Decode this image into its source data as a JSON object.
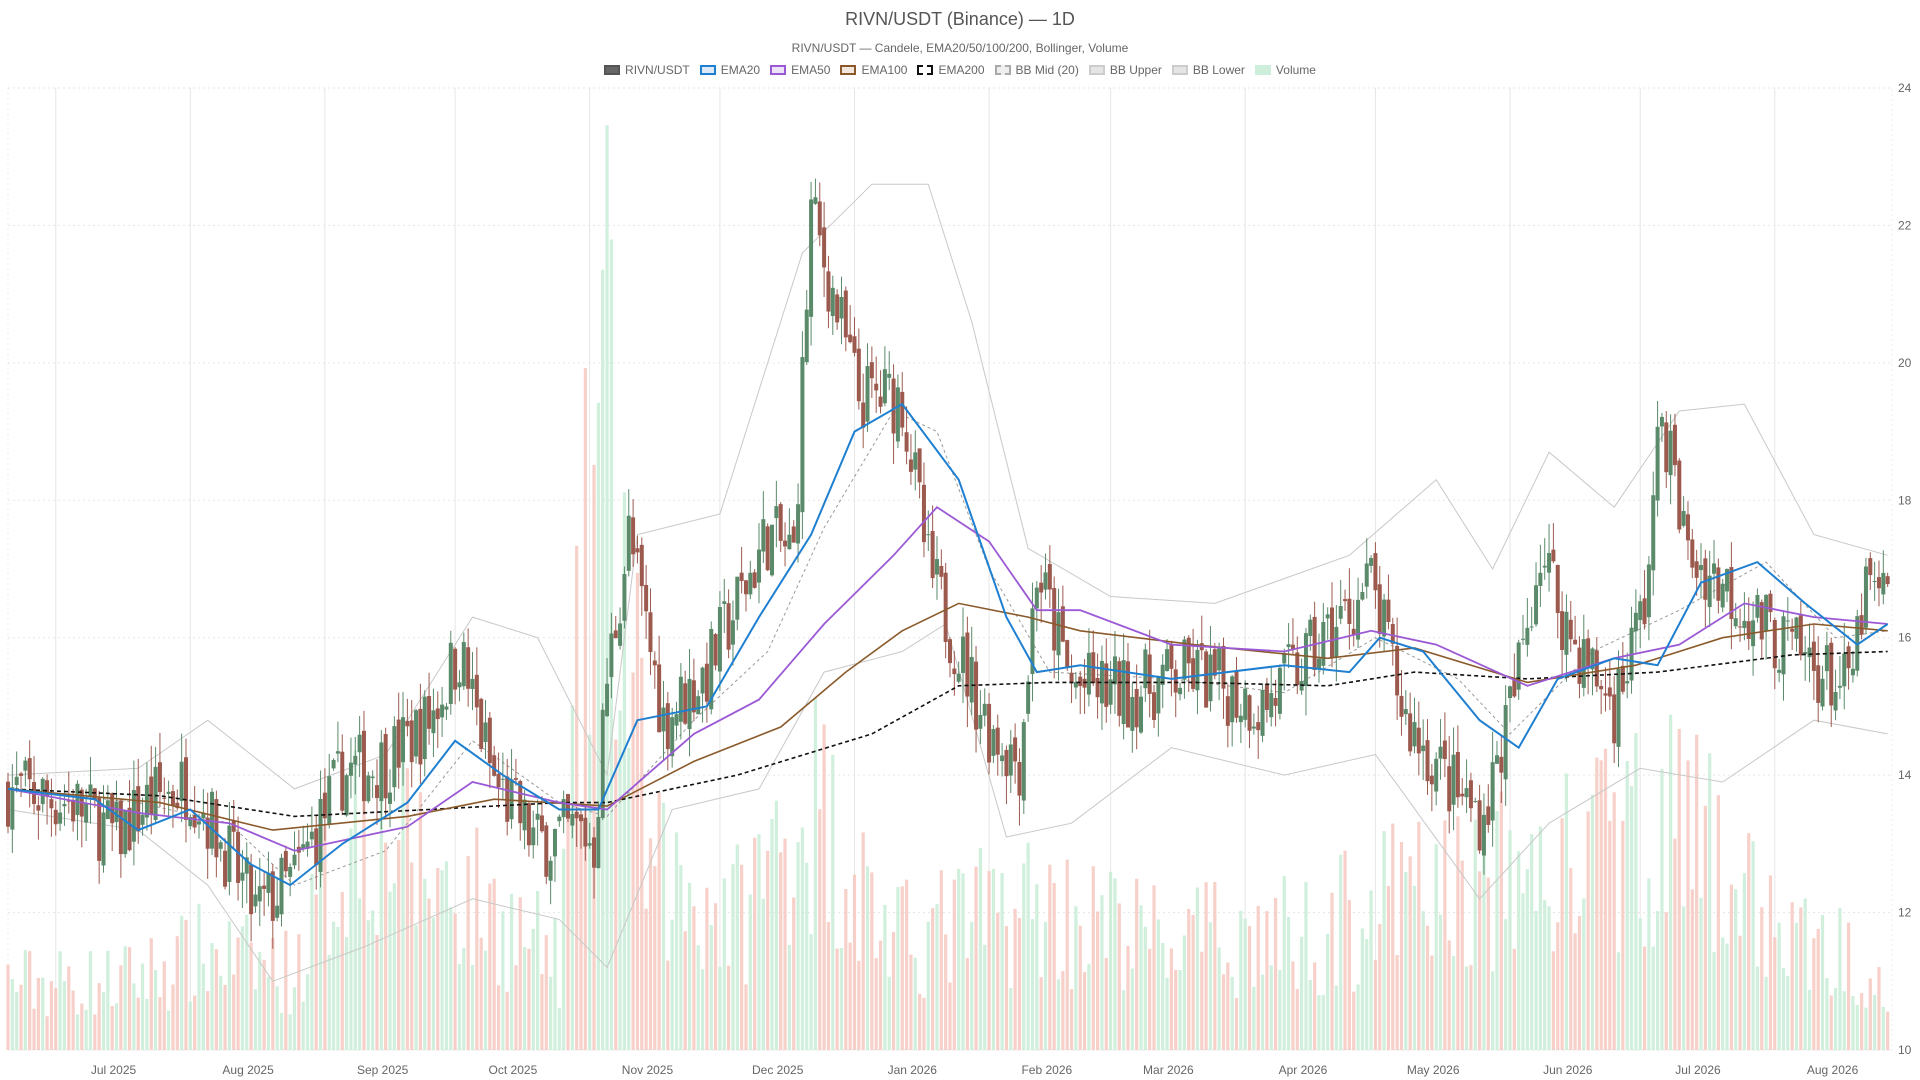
{
  "chart_data": {
    "type": "candlestick",
    "title": "RIVN/USDT (Binance) — 1D",
    "subtitle": "RIVN/USDT — Candele, EMA20/50/100/200, Bollinger, Volume",
    "legend": [
      {
        "name": "RIVN/USDT",
        "color": "#666666",
        "border": "#555555",
        "dashed": false
      },
      {
        "name": "EMA20",
        "color": "#dde9f6",
        "border": "#1f7fd0",
        "dashed": false
      },
      {
        "name": "EMA50",
        "color": "#ece4f6",
        "border": "#9b59d6",
        "dashed": false
      },
      {
        "name": "EMA100",
        "color": "#f3e6dc",
        "border": "#8b5a2b",
        "dashed": false
      },
      {
        "name": "EMA200",
        "color": "#ffffff",
        "border": "#111111",
        "dashed": true
      },
      {
        "name": "BB Mid (20)",
        "color": "#eeeeee",
        "border": "#aaaaaa",
        "dashed": true
      },
      {
        "name": "BB Upper",
        "color": "#e5e5e5",
        "border": "#cccccc",
        "dashed": false
      },
      {
        "name": "BB Lower",
        "color": "#e5e5e5",
        "border": "#cccccc",
        "dashed": false
      },
      {
        "name": "Volume",
        "color": "#cdeedb",
        "border": "#cdeedb",
        "dashed": false
      }
    ],
    "x_ticks": [
      "Jul 2025",
      "Aug 2025",
      "Sep 2025",
      "Oct 2025",
      "Nov 2025",
      "Dec 2025",
      "Jan 2026",
      "Feb 2026",
      "Mar 2026",
      "Apr 2026",
      "May 2026",
      "Jun 2026",
      "Jul 2026",
      "Aug 2026"
    ],
    "y_ticks": [
      10,
      12,
      14,
      16,
      18,
      20,
      22,
      24
    ],
    "ylim": [
      10,
      24
    ],
    "colors": {
      "up": "#5a8a6a",
      "down": "#9c5a4e",
      "vol_up": "#c8ecd6",
      "vol_down": "#f6c8c0",
      "ema20": "#1f7fd0",
      "ema50": "#9b59d6",
      "ema100": "#8b5a2b",
      "ema200": "#111111",
      "bb_mid": "#999999",
      "bb_band": "#c8c8c8",
      "grid": "#e6e6e6"
    },
    "price_path": [
      {
        "x": "2025-06-20",
        "y": 13.8
      },
      {
        "x": "2025-07-05",
        "y": 13.6
      },
      {
        "x": "2025-07-15",
        "y": 13.1
      },
      {
        "x": "2025-07-22",
        "y": 13.6
      },
      {
        "x": "2025-08-01",
        "y": 13.9
      },
      {
        "x": "2025-08-10",
        "y": 12.8
      },
      {
        "x": "2025-08-16",
        "y": 12.0
      },
      {
        "x": "2025-08-25",
        "y": 12.5
      },
      {
        "x": "2025-09-05",
        "y": 14.0
      },
      {
        "x": "2025-09-15",
        "y": 14.2
      },
      {
        "x": "2025-09-25",
        "y": 14.8
      },
      {
        "x": "2025-10-02",
        "y": 15.8
      },
      {
        "x": "2025-10-10",
        "y": 13.9
      },
      {
        "x": "2025-10-20",
        "y": 13.0
      },
      {
        "x": "2025-10-30",
        "y": 13.2
      },
      {
        "x": "2025-11-02",
        "y": 13.0
      },
      {
        "x": "2025-11-05",
        "y": 15.4
      },
      {
        "x": "2025-11-10",
        "y": 17.5
      },
      {
        "x": "2025-11-18",
        "y": 14.8
      },
      {
        "x": "2025-11-28",
        "y": 15.5
      },
      {
        "x": "2025-12-05",
        "y": 16.5
      },
      {
        "x": "2025-12-12",
        "y": 17.5
      },
      {
        "x": "2025-12-18",
        "y": 17.2
      },
      {
        "x": "2025-12-22",
        "y": 22.2
      },
      {
        "x": "2025-12-27",
        "y": 21.0
      },
      {
        "x": "2026-01-02",
        "y": 19.5
      },
      {
        "x": "2026-01-12",
        "y": 19.5
      },
      {
        "x": "2026-01-18",
        "y": 17.0
      },
      {
        "x": "2026-01-25",
        "y": 15.8
      },
      {
        "x": "2026-02-01",
        "y": 14.7
      },
      {
        "x": "2026-02-08",
        "y": 14.2
      },
      {
        "x": "2026-02-12",
        "y": 17.0
      },
      {
        "x": "2026-02-20",
        "y": 15.3
      },
      {
        "x": "2026-03-05",
        "y": 15.2
      },
      {
        "x": "2026-03-20",
        "y": 15.5
      },
      {
        "x": "2026-04-05",
        "y": 15.0
      },
      {
        "x": "2026-04-20",
        "y": 16.0
      },
      {
        "x": "2026-04-30",
        "y": 16.8
      },
      {
        "x": "2026-05-08",
        "y": 14.8
      },
      {
        "x": "2026-05-20",
        "y": 13.7
      },
      {
        "x": "2026-05-26",
        "y": 13.4
      },
      {
        "x": "2026-06-02",
        "y": 15.2
      },
      {
        "x": "2026-06-08",
        "y": 17.3
      },
      {
        "x": "2026-06-15",
        "y": 16.0
      },
      {
        "x": "2026-06-25",
        "y": 15.0
      },
      {
        "x": "2026-07-02",
        "y": 16.5
      },
      {
        "x": "2026-07-06",
        "y": 19.3
      },
      {
        "x": "2026-07-12",
        "y": 17.2
      },
      {
        "x": "2026-07-20",
        "y": 16.8
      },
      {
        "x": "2026-08-01",
        "y": 16.0
      },
      {
        "x": "2026-08-10",
        "y": 15.6
      },
      {
        "x": "2026-08-18",
        "y": 15.2
      },
      {
        "x": "2026-08-22",
        "y": 16.7
      },
      {
        "x": "2026-08-27",
        "y": 16.5
      }
    ],
    "bb_upper": [
      {
        "x": "2025-06-20",
        "y": 14.0
      },
      {
        "x": "2025-07-20",
        "y": 14.1
      },
      {
        "x": "2025-08-05",
        "y": 14.8
      },
      {
        "x": "2025-08-25",
        "y": 13.8
      },
      {
        "x": "2025-09-15",
        "y": 14.3
      },
      {
        "x": "2025-10-05",
        "y": 16.3
      },
      {
        "x": "2025-10-20",
        "y": 16.0
      },
      {
        "x": "2025-11-05",
        "y": 14.0
      },
      {
        "x": "2025-11-12",
        "y": 17.5
      },
      {
        "x": "2025-12-01",
        "y": 17.8
      },
      {
        "x": "2025-12-20",
        "y": 21.6
      },
      {
        "x": "2026-01-05",
        "y": 22.6
      },
      {
        "x": "2026-01-18",
        "y": 22.6
      },
      {
        "x": "2026-01-28",
        "y": 20.6
      },
      {
        "x": "2026-02-10",
        "y": 17.3
      },
      {
        "x": "2026-03-01",
        "y": 16.6
      },
      {
        "x": "2026-03-25",
        "y": 16.5
      },
      {
        "x": "2026-04-25",
        "y": 17.2
      },
      {
        "x": "2026-05-15",
        "y": 18.3
      },
      {
        "x": "2026-05-28",
        "y": 17.0
      },
      {
        "x": "2026-06-10",
        "y": 18.7
      },
      {
        "x": "2026-06-25",
        "y": 17.9
      },
      {
        "x": "2026-07-10",
        "y": 19.3
      },
      {
        "x": "2026-07-25",
        "y": 19.4
      },
      {
        "x": "2026-08-10",
        "y": 17.5
      },
      {
        "x": "2026-08-27",
        "y": 17.2
      }
    ],
    "bb_lower": [
      {
        "x": "2025-06-20",
        "y": 13.5
      },
      {
        "x": "2025-07-20",
        "y": 13.2
      },
      {
        "x": "2025-08-05",
        "y": 12.4
      },
      {
        "x": "2025-08-20",
        "y": 11.0
      },
      {
        "x": "2025-09-10",
        "y": 11.5
      },
      {
        "x": "2025-10-05",
        "y": 12.2
      },
      {
        "x": "2025-10-25",
        "y": 11.9
      },
      {
        "x": "2025-11-05",
        "y": 11.2
      },
      {
        "x": "2025-11-20",
        "y": 13.5
      },
      {
        "x": "2025-12-10",
        "y": 13.8
      },
      {
        "x": "2025-12-25",
        "y": 15.5
      },
      {
        "x": "2026-01-12",
        "y": 15.8
      },
      {
        "x": "2026-01-22",
        "y": 16.2
      },
      {
        "x": "2026-02-05",
        "y": 13.1
      },
      {
        "x": "2026-02-20",
        "y": 13.3
      },
      {
        "x": "2026-03-15",
        "y": 14.4
      },
      {
        "x": "2026-04-10",
        "y": 14.0
      },
      {
        "x": "2026-05-01",
        "y": 14.3
      },
      {
        "x": "2026-05-25",
        "y": 12.2
      },
      {
        "x": "2026-06-10",
        "y": 13.3
      },
      {
        "x": "2026-07-01",
        "y": 14.1
      },
      {
        "x": "2026-07-20",
        "y": 13.9
      },
      {
        "x": "2026-08-10",
        "y": 14.8
      },
      {
        "x": "2026-08-27",
        "y": 14.6
      }
    ],
    "bb_mid": [
      {
        "x": "2025-06-20",
        "y": 13.8
      },
      {
        "x": "2025-07-20",
        "y": 13.6
      },
      {
        "x": "2025-08-10",
        "y": 13.3
      },
      {
        "x": "2025-08-25",
        "y": 12.4
      },
      {
        "x": "2025-09-15",
        "y": 12.9
      },
      {
        "x": "2025-10-05",
        "y": 14.5
      },
      {
        "x": "2025-10-25",
        "y": 13.6
      },
      {
        "x": "2025-11-05",
        "y": 13.4
      },
      {
        "x": "2025-11-25",
        "y": 14.8
      },
      {
        "x": "2025-12-12",
        "y": 15.8
      },
      {
        "x": "2025-12-25",
        "y": 17.6
      },
      {
        "x": "2026-01-10",
        "y": 19.3
      },
      {
        "x": "2026-01-20",
        "y": 19.0
      },
      {
        "x": "2026-02-01",
        "y": 17.0
      },
      {
        "x": "2026-02-15",
        "y": 15.5
      },
      {
        "x": "2026-03-15",
        "y": 15.4
      },
      {
        "x": "2026-04-10",
        "y": 15.2
      },
      {
        "x": "2026-05-01",
        "y": 16.0
      },
      {
        "x": "2026-05-20",
        "y": 15.4
      },
      {
        "x": "2026-06-01",
        "y": 14.6
      },
      {
        "x": "2026-06-20",
        "y": 15.8
      },
      {
        "x": "2026-07-10",
        "y": 16.4
      },
      {
        "x": "2026-07-30",
        "y": 17.1
      },
      {
        "x": "2026-08-15",
        "y": 16.0
      },
      {
        "x": "2026-08-27",
        "y": 16.1
      }
    ],
    "ema20": [
      {
        "x": "2025-06-20",
        "y": 13.8
      },
      {
        "x": "2025-07-10",
        "y": 13.65
      },
      {
        "x": "2025-07-20",
        "y": 13.2
      },
      {
        "x": "2025-08-01",
        "y": 13.5
      },
      {
        "x": "2025-08-15",
        "y": 12.7
      },
      {
        "x": "2025-08-24",
        "y": 12.4
      },
      {
        "x": "2025-09-05",
        "y": 13.0
      },
      {
        "x": "2025-09-20",
        "y": 13.6
      },
      {
        "x": "2025-10-01",
        "y": 14.5
      },
      {
        "x": "2025-10-12",
        "y": 14.0
      },
      {
        "x": "2025-10-25",
        "y": 13.5
      },
      {
        "x": "2025-11-03",
        "y": 13.5
      },
      {
        "x": "2025-11-12",
        "y": 14.8
      },
      {
        "x": "2025-11-28",
        "y": 15.0
      },
      {
        "x": "2025-12-10",
        "y": 16.3
      },
      {
        "x": "2025-12-22",
        "y": 17.5
      },
      {
        "x": "2026-01-01",
        "y": 19.0
      },
      {
        "x": "2026-01-12",
        "y": 19.4
      },
      {
        "x": "2026-01-25",
        "y": 18.3
      },
      {
        "x": "2026-02-05",
        "y": 16.3
      },
      {
        "x": "2026-02-12",
        "y": 15.5
      },
      {
        "x": "2026-02-22",
        "y": 15.6
      },
      {
        "x": "2026-03-15",
        "y": 15.4
      },
      {
        "x": "2026-04-10",
        "y": 15.6
      },
      {
        "x": "2026-04-25",
        "y": 15.5
      },
      {
        "x": "2026-05-02",
        "y": 16.0
      },
      {
        "x": "2026-05-12",
        "y": 15.8
      },
      {
        "x": "2026-05-25",
        "y": 14.8
      },
      {
        "x": "2026-06-03",
        "y": 14.4
      },
      {
        "x": "2026-06-12",
        "y": 15.4
      },
      {
        "x": "2026-06-25",
        "y": 15.7
      },
      {
        "x": "2026-07-05",
        "y": 15.6
      },
      {
        "x": "2026-07-15",
        "y": 16.8
      },
      {
        "x": "2026-07-28",
        "y": 17.1
      },
      {
        "x": "2026-08-08",
        "y": 16.5
      },
      {
        "x": "2026-08-20",
        "y": 15.9
      },
      {
        "x": "2026-08-27",
        "y": 16.2
      }
    ],
    "ema50": [
      {
        "x": "2025-06-20",
        "y": 13.8
      },
      {
        "x": "2025-07-20",
        "y": 13.45
      },
      {
        "x": "2025-08-10",
        "y": 13.3
      },
      {
        "x": "2025-08-25",
        "y": 12.9
      },
      {
        "x": "2025-09-20",
        "y": 13.25
      },
      {
        "x": "2025-10-05",
        "y": 13.9
      },
      {
        "x": "2025-10-25",
        "y": 13.6
      },
      {
        "x": "2025-11-05",
        "y": 13.5
      },
      {
        "x": "2025-11-25",
        "y": 14.6
      },
      {
        "x": "2025-12-10",
        "y": 15.1
      },
      {
        "x": "2025-12-25",
        "y": 16.2
      },
      {
        "x": "2026-01-10",
        "y": 17.2
      },
      {
        "x": "2026-01-20",
        "y": 17.9
      },
      {
        "x": "2026-02-01",
        "y": 17.4
      },
      {
        "x": "2026-02-12",
        "y": 16.4
      },
      {
        "x": "2026-02-22",
        "y": 16.4
      },
      {
        "x": "2026-03-15",
        "y": 15.9
      },
      {
        "x": "2026-04-10",
        "y": 15.8
      },
      {
        "x": "2026-04-30",
        "y": 16.1
      },
      {
        "x": "2026-05-15",
        "y": 15.9
      },
      {
        "x": "2026-06-05",
        "y": 15.3
      },
      {
        "x": "2026-06-25",
        "y": 15.7
      },
      {
        "x": "2026-07-10",
        "y": 15.9
      },
      {
        "x": "2026-07-25",
        "y": 16.5
      },
      {
        "x": "2026-08-10",
        "y": 16.3
      },
      {
        "x": "2026-08-27",
        "y": 16.2
      }
    ],
    "ema100": [
      {
        "x": "2025-06-20",
        "y": 13.8
      },
      {
        "x": "2025-07-25",
        "y": 13.6
      },
      {
        "x": "2025-08-20",
        "y": 13.2
      },
      {
        "x": "2025-09-20",
        "y": 13.4
      },
      {
        "x": "2025-10-10",
        "y": 13.65
      },
      {
        "x": "2025-11-05",
        "y": 13.55
      },
      {
        "x": "2025-11-25",
        "y": 14.2
      },
      {
        "x": "2025-12-15",
        "y": 14.7
      },
      {
        "x": "2025-12-30",
        "y": 15.5
      },
      {
        "x": "2026-01-12",
        "y": 16.1
      },
      {
        "x": "2026-01-25",
        "y": 16.5
      },
      {
        "x": "2026-02-10",
        "y": 16.3
      },
      {
        "x": "2026-02-22",
        "y": 16.1
      },
      {
        "x": "2026-03-20",
        "y": 15.9
      },
      {
        "x": "2026-04-20",
        "y": 15.7
      },
      {
        "x": "2026-05-10",
        "y": 15.85
      },
      {
        "x": "2026-06-05",
        "y": 15.35
      },
      {
        "x": "2026-06-30",
        "y": 15.6
      },
      {
        "x": "2026-07-20",
        "y": 16.0
      },
      {
        "x": "2026-08-10",
        "y": 16.2
      },
      {
        "x": "2026-08-27",
        "y": 16.1
      }
    ],
    "ema200": [
      {
        "x": "2025-06-20",
        "y": 13.8
      },
      {
        "x": "2025-07-25",
        "y": 13.7
      },
      {
        "x": "2025-08-25",
        "y": 13.4
      },
      {
        "x": "2025-09-25",
        "y": 13.5
      },
      {
        "x": "2025-10-25",
        "y": 13.6
      },
      {
        "x": "2025-11-05",
        "y": 13.6
      },
      {
        "x": "2025-12-05",
        "y": 14.0
      },
      {
        "x": "2026-01-05",
        "y": 14.6
      },
      {
        "x": "2026-01-25",
        "y": 15.3
      },
      {
        "x": "2026-02-15",
        "y": 15.35
      },
      {
        "x": "2026-03-20",
        "y": 15.35
      },
      {
        "x": "2026-04-20",
        "y": 15.3
      },
      {
        "x": "2026-05-10",
        "y": 15.5
      },
      {
        "x": "2026-06-05",
        "y": 15.4
      },
      {
        "x": "2026-07-05",
        "y": 15.5
      },
      {
        "x": "2026-08-05",
        "y": 15.75
      },
      {
        "x": "2026-08-27",
        "y": 15.8
      }
    ],
    "volume_path": [
      {
        "x": "2025-06-20",
        "y": 0.35
      },
      {
        "x": "2025-07-15",
        "y": 0.35
      },
      {
        "x": "2025-08-05",
        "y": 0.5
      },
      {
        "x": "2025-08-25",
        "y": 0.4
      },
      {
        "x": "2025-09-10",
        "y": 1.3
      },
      {
        "x": "2025-09-25",
        "y": 0.9
      },
      {
        "x": "2025-10-10",
        "y": 0.7
      },
      {
        "x": "2025-10-25",
        "y": 0.45
      },
      {
        "x": "2025-11-04",
        "y": 3.5
      },
      {
        "x": "2025-11-15",
        "y": 0.9
      },
      {
        "x": "2025-12-05",
        "y": 0.7
      },
      {
        "x": "2025-12-22",
        "y": 1.3
      },
      {
        "x": "2026-01-10",
        "y": 0.55
      },
      {
        "x": "2026-02-10",
        "y": 0.75
      },
      {
        "x": "2026-03-15",
        "y": 0.55
      },
      {
        "x": "2026-04-15",
        "y": 0.6
      },
      {
        "x": "2026-05-10",
        "y": 0.8
      },
      {
        "x": "2026-06-10",
        "y": 0.9
      },
      {
        "x": "2026-07-08",
        "y": 1.2
      },
      {
        "x": "2026-08-05",
        "y": 0.55
      },
      {
        "x": "2026-08-27",
        "y": 0.45
      }
    ],
    "volume_ylim": [
      0,
      3.5
    ]
  }
}
